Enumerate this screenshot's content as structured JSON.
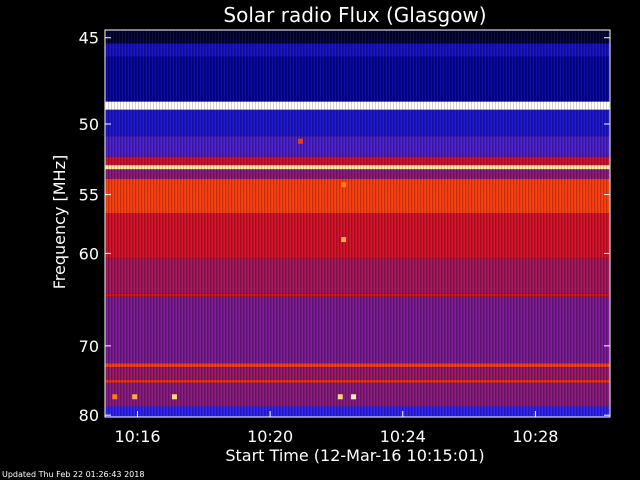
{
  "chart_data": {
    "type": "heatmap",
    "title": "Solar radio Flux (Glasgow)",
    "xlabel": "Start Time (12-Mar-16 10:15:01)",
    "ylabel_text": "Frequency ",
    "ylabel_unit": "MHz",
    "footer": "Updated Thu Feb 22 01:26:43 2018",
    "y_ticks": [
      "45",
      "50",
      "55",
      "60",
      "70",
      "80"
    ],
    "y_tick_values": [
      45,
      50,
      55,
      60,
      70,
      80
    ],
    "x_ticks": [
      "10:16",
      "10:20",
      "10:24",
      "10:28"
    ],
    "x_tick_minutes": [
      16,
      20,
      24,
      28
    ],
    "x_range_minutes": [
      15.02,
      30.25
    ],
    "y_range_mhz": [
      44.6,
      80.3
    ],
    "y_scale": "reciprocal",
    "colormap": "black-blue-red-yellow-white",
    "bands": [
      {
        "from": 44.6,
        "to": 45.3,
        "level": 0.05
      },
      {
        "from": 45.3,
        "to": 46.0,
        "level": 0.22
      },
      {
        "from": 46.0,
        "to": 48.6,
        "level": 0.16
      },
      {
        "from": 48.6,
        "to": 49.1,
        "level": 1.0
      },
      {
        "from": 49.1,
        "to": 50.8,
        "level": 0.24
      },
      {
        "from": 50.8,
        "to": 52.2,
        "level": 0.34
      },
      {
        "from": 52.2,
        "to": 52.8,
        "level": 0.55
      },
      {
        "from": 52.8,
        "to": 53.1,
        "level": 0.93
      },
      {
        "from": 53.1,
        "to": 53.8,
        "level": 0.42
      },
      {
        "from": 53.8,
        "to": 56.5,
        "level": 0.7
      },
      {
        "from": 56.5,
        "to": 60.5,
        "level": 0.56
      },
      {
        "from": 60.5,
        "to": 64.0,
        "level": 0.46
      },
      {
        "from": 64.0,
        "to": 64.3,
        "level": 0.6
      },
      {
        "from": 64.3,
        "to": 72.3,
        "level": 0.4
      },
      {
        "from": 72.3,
        "to": 72.8,
        "level": 0.7
      },
      {
        "from": 72.8,
        "to": 74.6,
        "level": 0.44
      },
      {
        "from": 74.6,
        "to": 75.0,
        "level": 0.68
      },
      {
        "from": 75.0,
        "to": 78.6,
        "level": 0.42
      },
      {
        "from": 78.6,
        "to": 80.3,
        "level": 0.3
      }
    ],
    "spots": [
      {
        "t": 22.2,
        "f": 58.7,
        "level": 0.85
      },
      {
        "t": 20.9,
        "f": 51.1,
        "level": 0.7
      },
      {
        "t": 22.5,
        "f": 77.0,
        "level": 0.95
      },
      {
        "t": 22.1,
        "f": 77.0,
        "level": 0.9
      },
      {
        "t": 17.1,
        "f": 77.0,
        "level": 0.9
      },
      {
        "t": 15.9,
        "f": 77.0,
        "level": 0.85
      },
      {
        "t": 15.3,
        "f": 77.0,
        "level": 0.8
      },
      {
        "t": 22.2,
        "f": 54.2,
        "level": 0.8
      }
    ]
  }
}
